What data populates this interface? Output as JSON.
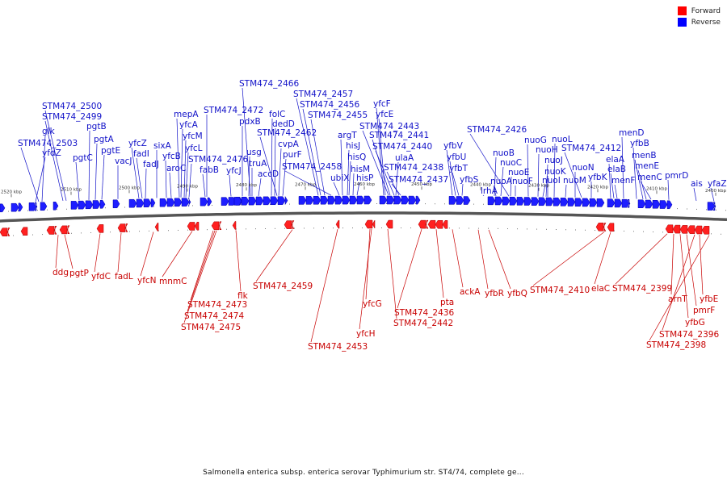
{
  "legend": {
    "forward_label": "Forward",
    "reverse_label": "Reverse",
    "forward_color": "#ff0000",
    "reverse_color": "#0000ff"
  },
  "caption": "Salmonella enterica subsp. enterica serovar Typhimurium str. ST4/74, complete ge...",
  "axis_ticks": [
    "2520 kbp",
    "2510 kbp",
    "2500 kbp",
    "2490 kbp",
    "2480 kbp",
    "2470 kbp",
    "2460 kbp",
    "2450 kbp",
    "2440 kbp",
    "2430 kbp",
    "2420 kbp",
    "2410 kbp",
    "2400 kbp"
  ],
  "reverse_genes": [
    "glk",
    "STM474_2503",
    "yfdZ",
    "STM474_2500",
    "STM474_2499",
    "pgtC",
    "pgtB",
    "pgtA",
    "pgtE",
    "vacJ",
    "yfcZ",
    "fadI",
    "fadJ",
    "sixA",
    "yfcB",
    "aroC",
    "mepA",
    "yfcA",
    "yfcM",
    "yfcL",
    "STM474_2476",
    "fabB",
    "STM474_2472",
    "yfcJ",
    "pdxB",
    "usg",
    "truA",
    "accD",
    "STM474_2466",
    "folC",
    "dedD",
    "STM474_2462",
    "cvpA",
    "purF",
    "STM474_2457",
    "STM474_2456",
    "STM474_2455",
    "STM474_2458",
    "ubiX",
    "argT",
    "hisJ",
    "hisQ",
    "hisM",
    "hisP",
    "yfcF",
    "yfcE",
    "STM474_2443",
    "STM474_2441",
    "STM474_2440",
    "ulaA",
    "STM474_2438",
    "STM474_2437",
    "yfbV",
    "yfbU",
    "yfbT",
    "yfbS",
    "lrhA",
    "STM474_2426",
    "nuoB",
    "nuoA",
    "nuoC",
    "nuoE",
    "nuoF",
    "nuoG",
    "nuoH",
    "nuoI",
    "nuoJ",
    "nuoK",
    "nuoL",
    "nuoM",
    "nuoN",
    "STM474_2412",
    "yfbK",
    "elaA",
    "elaB",
    "menF",
    "menD",
    "yfbB",
    "menB",
    "menE",
    "menC",
    "pmrD",
    "ais",
    "yfaZ"
  ],
  "forward_genes": [
    "ddg",
    "pgtP",
    "yfdC",
    "fadL",
    "yfcN",
    "mnmC",
    "STM474_2473",
    "STM474_2474",
    "STM474_2475",
    "flk",
    "STM474_2459",
    "STM474_2453",
    "yfcG",
    "yfcH",
    "STM474_2442",
    "STM474_2436",
    "pta",
    "ackA",
    "yfbR",
    "yfbQ",
    "STM474_2410",
    "elaC",
    "STM474_2399",
    "arnT",
    "yfbG",
    "pmrF",
    "yfbE",
    "STM474_2396",
    "STM474_2398"
  ]
}
